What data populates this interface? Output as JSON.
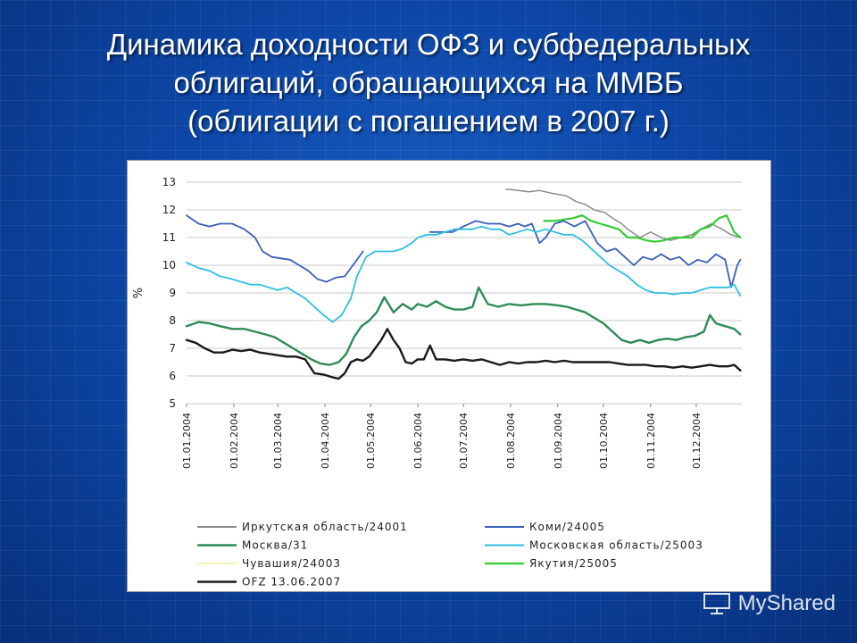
{
  "slide": {
    "title_lines": [
      "Динамика доходности ОФЗ и субфедеральных",
      "облигаций, обращающихся на ММВБ",
      "(облигации с погашением в 2007 г.)"
    ]
  },
  "watermark": {
    "text": "MyShared"
  },
  "chart_data": {
    "type": "line",
    "title": "",
    "xlabel": "",
    "ylabel": "%",
    "ylim": [
      5,
      13
    ],
    "yticks": [
      5,
      6,
      7,
      8,
      9,
      10,
      11,
      12,
      13
    ],
    "x_tick_labels": [
      "01.01.2004",
      "01.02.2004",
      "01.03.2004",
      "01.04.2004",
      "01.05.2004",
      "01.06.2004",
      "01.07.2004",
      "01.08.2004",
      "01.09.2004",
      "01.10.2004",
      "01.11.2004",
      "01.12.2004"
    ],
    "x_tick_days": [
      0,
      31,
      60,
      91,
      121,
      152,
      182,
      213,
      244,
      274,
      305,
      335
    ],
    "xlim_days": [
      0,
      365
    ],
    "grid": true,
    "legend_position": "bottom",
    "series": [
      {
        "name": "Иркутская область/24001",
        "color": "#8c8c8c",
        "width": 1.5,
        "dashed": false,
        "points": [
          [
            210,
            12.75
          ],
          [
            218,
            12.7
          ],
          [
            225,
            12.65
          ],
          [
            232,
            12.7
          ],
          [
            240,
            12.6
          ],
          [
            250,
            12.5
          ],
          [
            256,
            12.3
          ],
          [
            262,
            12.2
          ],
          [
            268,
            12.0
          ],
          [
            275,
            11.9
          ],
          [
            280,
            11.7
          ],
          [
            286,
            11.5
          ],
          [
            290,
            11.3
          ],
          [
            298,
            11.0
          ],
          [
            305,
            11.2
          ],
          [
            312,
            11.0
          ],
          [
            318,
            10.9
          ],
          [
            325,
            11.0
          ],
          [
            332,
            11.1
          ],
          [
            338,
            11.3
          ],
          [
            345,
            11.5
          ],
          [
            352,
            11.3
          ],
          [
            358,
            11.1
          ],
          [
            364,
            11.0
          ]
        ]
      },
      {
        "name": "Коми/24005",
        "color": "#3a5fb8",
        "width": 1.8,
        "dashed": false,
        "points": [
          [
            0,
            11.8
          ],
          [
            8,
            11.5
          ],
          [
            15,
            11.4
          ],
          [
            22,
            11.5
          ],
          [
            30,
            11.5
          ],
          [
            38,
            11.3
          ],
          [
            45,
            11.0
          ],
          [
            50,
            10.5
          ],
          [
            56,
            10.3
          ],
          [
            62,
            10.25
          ],
          [
            68,
            10.2
          ],
          [
            74,
            10.0
          ],
          [
            80,
            9.8
          ],
          [
            86,
            9.5
          ],
          [
            92,
            9.4
          ],
          [
            98,
            9.55
          ],
          [
            104,
            9.6
          ],
          [
            108,
            9.9
          ],
          [
            112,
            10.2
          ],
          [
            116,
            10.5
          ],
          [
            122,
            null
          ],
          [
            160,
            11.2
          ],
          [
            168,
            11.2
          ],
          [
            175,
            11.2
          ],
          [
            182,
            11.4
          ],
          [
            190,
            11.6
          ],
          [
            198,
            11.5
          ],
          [
            206,
            11.5
          ],
          [
            212,
            11.4
          ],
          [
            218,
            11.5
          ],
          [
            222,
            11.4
          ],
          [
            227,
            11.5
          ],
          [
            232,
            10.8
          ],
          [
            236,
            11.0
          ],
          [
            242,
            11.5
          ],
          [
            248,
            11.6
          ],
          [
            255,
            11.4
          ],
          [
            262,
            11.6
          ],
          [
            270,
            10.8
          ],
          [
            276,
            10.5
          ],
          [
            282,
            10.6
          ],
          [
            288,
            10.3
          ],
          [
            294,
            10.0
          ],
          [
            300,
            10.3
          ],
          [
            306,
            10.2
          ],
          [
            312,
            10.4
          ],
          [
            318,
            10.2
          ],
          [
            324,
            10.3
          ],
          [
            330,
            10.0
          ],
          [
            336,
            10.2
          ],
          [
            342,
            10.1
          ],
          [
            348,
            10.4
          ],
          [
            354,
            10.2
          ],
          [
            358,
            9.2
          ],
          [
            362,
            10.0
          ],
          [
            364,
            10.2
          ]
        ]
      },
      {
        "name": "Москва/31",
        "color": "#2e8b57",
        "width": 2.4,
        "dashed": false,
        "points": [
          [
            0,
            7.8
          ],
          [
            8,
            7.95
          ],
          [
            15,
            7.9
          ],
          [
            22,
            7.8
          ],
          [
            30,
            7.7
          ],
          [
            38,
            7.7
          ],
          [
            45,
            7.6
          ],
          [
            52,
            7.5
          ],
          [
            58,
            7.4
          ],
          [
            64,
            7.2
          ],
          [
            70,
            7.0
          ],
          [
            76,
            6.8
          ],
          [
            82,
            6.6
          ],
          [
            88,
            6.45
          ],
          [
            94,
            6.4
          ],
          [
            100,
            6.5
          ],
          [
            105,
            6.8
          ],
          [
            110,
            7.4
          ],
          [
            115,
            7.8
          ],
          [
            120,
            8.0
          ],
          [
            125,
            8.3
          ],
          [
            130,
            8.85
          ],
          [
            136,
            8.3
          ],
          [
            142,
            8.6
          ],
          [
            148,
            8.4
          ],
          [
            152,
            8.6
          ],
          [
            158,
            8.5
          ],
          [
            164,
            8.7
          ],
          [
            170,
            8.5
          ],
          [
            176,
            8.4
          ],
          [
            182,
            8.4
          ],
          [
            188,
            8.5
          ],
          [
            192,
            9.2
          ],
          [
            198,
            8.6
          ],
          [
            205,
            8.5
          ],
          [
            212,
            8.6
          ],
          [
            220,
            8.55
          ],
          [
            228,
            8.6
          ],
          [
            236,
            8.6
          ],
          [
            244,
            8.55
          ],
          [
            250,
            8.5
          ],
          [
            256,
            8.4
          ],
          [
            262,
            8.3
          ],
          [
            268,
            8.1
          ],
          [
            274,
            7.9
          ],
          [
            280,
            7.6
          ],
          [
            286,
            7.3
          ],
          [
            292,
            7.2
          ],
          [
            298,
            7.3
          ],
          [
            304,
            7.2
          ],
          [
            310,
            7.3
          ],
          [
            316,
            7.35
          ],
          [
            322,
            7.3
          ],
          [
            328,
            7.4
          ],
          [
            334,
            7.45
          ],
          [
            340,
            7.6
          ],
          [
            344,
            8.2
          ],
          [
            348,
            7.9
          ],
          [
            354,
            7.8
          ],
          [
            360,
            7.7
          ],
          [
            364,
            7.5
          ]
        ]
      },
      {
        "name": "Московская область/25003",
        "color": "#2fbfe0",
        "width": 1.8,
        "dashed": false,
        "points": [
          [
            0,
            10.1
          ],
          [
            8,
            9.9
          ],
          [
            15,
            9.8
          ],
          [
            22,
            9.6
          ],
          [
            30,
            9.5
          ],
          [
            36,
            9.4
          ],
          [
            42,
            9.3
          ],
          [
            48,
            9.3
          ],
          [
            54,
            9.2
          ],
          [
            60,
            9.1
          ],
          [
            66,
            9.2
          ],
          [
            72,
            9.0
          ],
          [
            78,
            8.8
          ],
          [
            84,
            8.5
          ],
          [
            90,
            8.2
          ],
          [
            96,
            7.95
          ],
          [
            102,
            8.2
          ],
          [
            108,
            8.8
          ],
          [
            112,
            9.6
          ],
          [
            118,
            10.3
          ],
          [
            124,
            10.5
          ],
          [
            130,
            10.5
          ],
          [
            136,
            10.5
          ],
          [
            142,
            10.6
          ],
          [
            148,
            10.8
          ],
          [
            152,
            11.0
          ],
          [
            158,
            11.1
          ],
          [
            164,
            11.1
          ],
          [
            170,
            11.2
          ],
          [
            176,
            11.3
          ],
          [
            182,
            11.3
          ],
          [
            188,
            11.3
          ],
          [
            194,
            11.4
          ],
          [
            200,
            11.3
          ],
          [
            206,
            11.3
          ],
          [
            212,
            11.1
          ],
          [
            218,
            11.2
          ],
          [
            224,
            11.3
          ],
          [
            230,
            11.2
          ],
          [
            236,
            11.3
          ],
          [
            242,
            11.2
          ],
          [
            248,
            11.1
          ],
          [
            254,
            11.1
          ],
          [
            260,
            10.9
          ],
          [
            266,
            10.6
          ],
          [
            272,
            10.3
          ],
          [
            278,
            10.0
          ],
          [
            284,
            9.8
          ],
          [
            290,
            9.6
          ],
          [
            296,
            9.3
          ],
          [
            302,
            9.1
          ],
          [
            308,
            9.0
          ],
          [
            314,
            9.0
          ],
          [
            320,
            8.95
          ],
          [
            326,
            9.0
          ],
          [
            332,
            9.0
          ],
          [
            338,
            9.1
          ],
          [
            344,
            9.2
          ],
          [
            350,
            9.2
          ],
          [
            356,
            9.2
          ],
          [
            360,
            9.3
          ],
          [
            364,
            8.9
          ]
        ]
      },
      {
        "name": "Чувашия/24003",
        "color": "#f4f4b8",
        "width": 1.2,
        "dashed": false,
        "points": []
      },
      {
        "name": "Якутия/25005",
        "color": "#33cc33",
        "width": 2.2,
        "dashed": false,
        "points": [
          [
            235,
            11.6
          ],
          [
            242,
            11.6
          ],
          [
            248,
            11.65
          ],
          [
            254,
            11.7
          ],
          [
            260,
            11.8
          ],
          [
            266,
            11.6
          ],
          [
            272,
            11.5
          ],
          [
            278,
            11.4
          ],
          [
            284,
            11.3
          ],
          [
            290,
            11.0
          ],
          [
            296,
            11.0
          ],
          [
            302,
            10.9
          ],
          [
            308,
            10.85
          ],
          [
            314,
            10.9
          ],
          [
            320,
            11.0
          ],
          [
            326,
            11.0
          ],
          [
            332,
            11.0
          ],
          [
            338,
            11.3
          ],
          [
            344,
            11.4
          ],
          [
            350,
            11.7
          ],
          [
            355,
            11.8
          ],
          [
            360,
            11.2
          ],
          [
            364,
            11.0
          ]
        ]
      },
      {
        "name": "OFZ 13.06.2007",
        "color": "#1a1a1a",
        "width": 2.4,
        "dashed": false,
        "points": [
          [
            0,
            7.3
          ],
          [
            6,
            7.2
          ],
          [
            12,
            7.0
          ],
          [
            18,
            6.85
          ],
          [
            24,
            6.85
          ],
          [
            30,
            6.95
          ],
          [
            36,
            6.9
          ],
          [
            42,
            6.95
          ],
          [
            48,
            6.85
          ],
          [
            54,
            6.8
          ],
          [
            60,
            6.75
          ],
          [
            66,
            6.7
          ],
          [
            72,
            6.7
          ],
          [
            78,
            6.6
          ],
          [
            84,
            6.1
          ],
          [
            90,
            6.05
          ],
          [
            96,
            5.95
          ],
          [
            100,
            5.9
          ],
          [
            104,
            6.1
          ],
          [
            108,
            6.5
          ],
          [
            112,
            6.6
          ],
          [
            116,
            6.55
          ],
          [
            120,
            6.7
          ],
          [
            124,
            7.0
          ],
          [
            128,
            7.3
          ],
          [
            132,
            7.7
          ],
          [
            136,
            7.3
          ],
          [
            140,
            7.0
          ],
          [
            144,
            6.5
          ],
          [
            148,
            6.45
          ],
          [
            152,
            6.6
          ],
          [
            156,
            6.6
          ],
          [
            160,
            7.1
          ],
          [
            164,
            6.6
          ],
          [
            170,
            6.6
          ],
          [
            176,
            6.55
          ],
          [
            182,
            6.6
          ],
          [
            188,
            6.55
          ],
          [
            194,
            6.6
          ],
          [
            200,
            6.5
          ],
          [
            206,
            6.4
          ],
          [
            212,
            6.5
          ],
          [
            218,
            6.45
          ],
          [
            224,
            6.5
          ],
          [
            230,
            6.5
          ],
          [
            236,
            6.55
          ],
          [
            242,
            6.5
          ],
          [
            248,
            6.55
          ],
          [
            254,
            6.5
          ],
          [
            260,
            6.5
          ],
          [
            266,
            6.5
          ],
          [
            272,
            6.5
          ],
          [
            278,
            6.5
          ],
          [
            284,
            6.45
          ],
          [
            290,
            6.4
          ],
          [
            296,
            6.4
          ],
          [
            302,
            6.4
          ],
          [
            308,
            6.35
          ],
          [
            314,
            6.35
          ],
          [
            320,
            6.3
          ],
          [
            326,
            6.35
          ],
          [
            332,
            6.3
          ],
          [
            338,
            6.35
          ],
          [
            344,
            6.4
          ],
          [
            350,
            6.35
          ],
          [
            356,
            6.35
          ],
          [
            360,
            6.4
          ],
          [
            364,
            6.2
          ]
        ]
      }
    ]
  }
}
